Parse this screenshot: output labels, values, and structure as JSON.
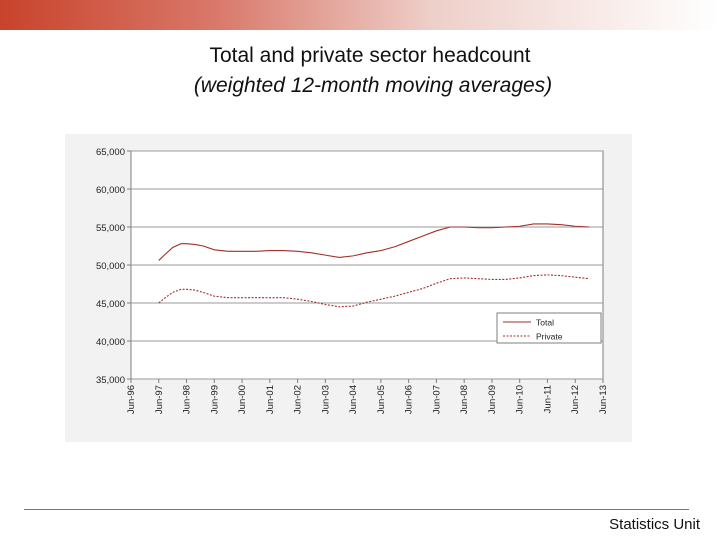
{
  "slide": {
    "title": "Total and private sector headcount",
    "subtitle": "(weighted 12-month moving averages)",
    "footer": "Statistics Unit",
    "accent_color": "#c8432b"
  },
  "chart_data": {
    "type": "line",
    "title": "",
    "xlabel": "",
    "ylabel": "",
    "ylim": [
      35000,
      65000
    ],
    "yticks": [
      "35,000",
      "40,000",
      "45,000",
      "50,000",
      "55,000",
      "60,000",
      "65,000"
    ],
    "ytick_values": [
      35000,
      40000,
      45000,
      50000,
      55000,
      60000,
      65000
    ],
    "categories": [
      "Jun-96",
      "Jun-97",
      "Jun-98",
      "Jun-99",
      "Jun-00",
      "Jun-01",
      "Jun-02",
      "Jun-03",
      "Jun-04",
      "Jun-05",
      "Jun-06",
      "Jun-07",
      "Jun-08",
      "Jun-09",
      "Jun-10",
      "Jun-11",
      "Jun-12",
      "Jun-13"
    ],
    "grid": true,
    "legend": "bottom-right",
    "series": [
      {
        "name": "Total",
        "style": "solid",
        "color": "#a0302a",
        "x": [
          1.0,
          1.2,
          1.5,
          1.8,
          2.0,
          2.3,
          2.6,
          3.0,
          3.5,
          4.0,
          4.5,
          5.0,
          5.5,
          6.0,
          6.5,
          7.0,
          7.5,
          8.0,
          8.5,
          9.0,
          9.5,
          10.0,
          10.5,
          11.0,
          11.5,
          12.0,
          12.5,
          13.0,
          13.5,
          14.0,
          14.5,
          15.0,
          15.5,
          16.0,
          16.5
        ],
        "values": [
          50600,
          51300,
          52300,
          52800,
          52800,
          52700,
          52500,
          52000,
          51800,
          51800,
          51800,
          51900,
          51900,
          51800,
          51600,
          51300,
          51000,
          51200,
          51600,
          51900,
          52400,
          53100,
          53800,
          54500,
          55000,
          55000,
          54900,
          54900,
          55000,
          55100,
          55400,
          55400,
          55300,
          55100,
          55000
        ]
      },
      {
        "name": "Private",
        "style": "dashed",
        "color": "#a0302a",
        "x": [
          1.0,
          1.2,
          1.5,
          1.8,
          2.0,
          2.3,
          2.6,
          3.0,
          3.5,
          4.0,
          4.5,
          5.0,
          5.5,
          6.0,
          6.5,
          7.0,
          7.5,
          8.0,
          8.5,
          9.0,
          9.5,
          10.0,
          10.5,
          11.0,
          11.5,
          12.0,
          12.5,
          13.0,
          13.5,
          14.0,
          14.5,
          15.0,
          15.5,
          16.0,
          16.5
        ],
        "values": [
          45000,
          45600,
          46400,
          46800,
          46800,
          46700,
          46400,
          45900,
          45700,
          45700,
          45700,
          45700,
          45700,
          45500,
          45200,
          44800,
          44500,
          44600,
          45100,
          45500,
          45900,
          46400,
          46900,
          47600,
          48200,
          48300,
          48200,
          48100,
          48100,
          48300,
          48600,
          48700,
          48600,
          48400,
          48200
        ]
      }
    ]
  }
}
